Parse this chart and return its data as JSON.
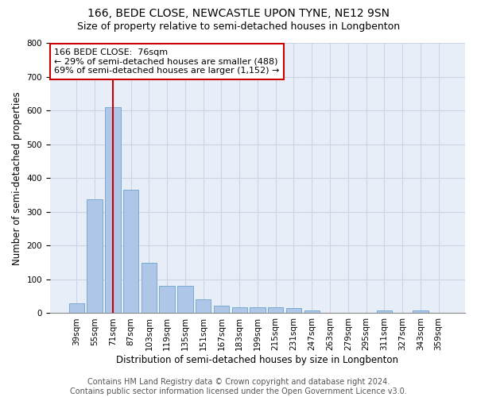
{
  "title1": "166, BEDE CLOSE, NEWCASTLE UPON TYNE, NE12 9SN",
  "title2": "Size of property relative to semi-detached houses in Longbenton",
  "xlabel": "Distribution of semi-detached houses by size in Longbenton",
  "ylabel": "Number of semi-detached properties",
  "categories": [
    "39sqm",
    "55sqm",
    "71sqm",
    "87sqm",
    "103sqm",
    "119sqm",
    "135sqm",
    "151sqm",
    "167sqm",
    "183sqm",
    "199sqm",
    "215sqm",
    "231sqm",
    "247sqm",
    "263sqm",
    "279sqm",
    "295sqm",
    "311sqm",
    "327sqm",
    "343sqm",
    "359sqm"
  ],
  "values": [
    30,
    338,
    610,
    365,
    148,
    80,
    80,
    40,
    22,
    17,
    17,
    17,
    15,
    8,
    0,
    0,
    0,
    8,
    0,
    8,
    0
  ],
  "bar_color": "#aec6e8",
  "bar_edge_color": "#7aaad0",
  "vline_x_index": 2,
  "vline_color": "#cc0000",
  "annotation_line1": "166 BEDE CLOSE:  76sqm",
  "annotation_line2": "← 29% of semi-detached houses are smaller (488)",
  "annotation_line3": "69% of semi-detached houses are larger (1,152) →",
  "ylim": [
    0,
    800
  ],
  "yticks": [
    0,
    100,
    200,
    300,
    400,
    500,
    600,
    700,
    800
  ],
  "grid_color": "#ccd5e5",
  "bg_color": "#e8eef8",
  "footer1": "Contains HM Land Registry data © Crown copyright and database right 2024.",
  "footer2": "Contains public sector information licensed under the Open Government Licence v3.0.",
  "title_fontsize": 10,
  "subtitle_fontsize": 9,
  "axis_label_fontsize": 8.5,
  "tick_fontsize": 7.5,
  "annotation_fontsize": 8,
  "footer_fontsize": 7
}
